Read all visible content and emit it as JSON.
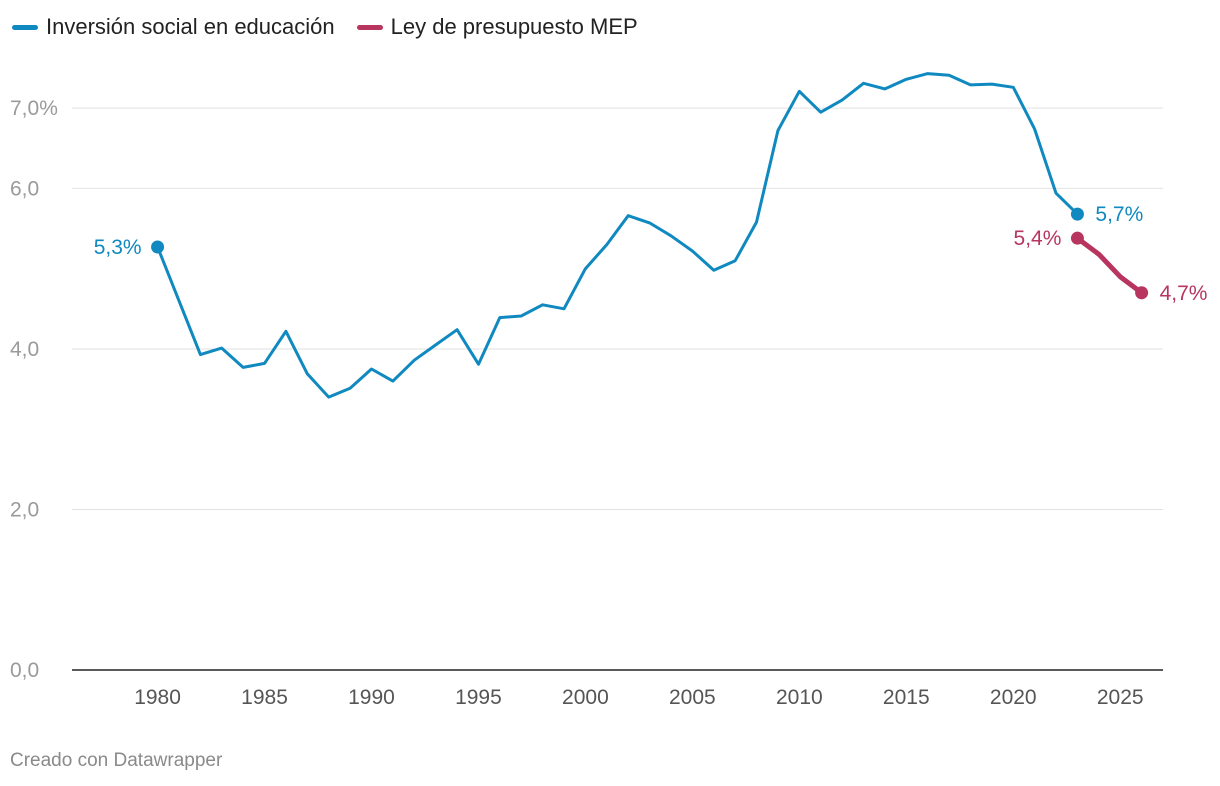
{
  "chart_data": {
    "type": "line",
    "x_range": [
      1976,
      2027
    ],
    "ylim": [
      0,
      7.6
    ],
    "yticks": [
      {
        "value": 0,
        "label": "0,0"
      },
      {
        "value": 2,
        "label": "2,0"
      },
      {
        "value": 4,
        "label": "4,0"
      },
      {
        "value": 6,
        "label": "6,0"
      },
      {
        "value": 7,
        "label": "7,0%"
      }
    ],
    "xticks": [
      {
        "value": 1980,
        "label": "1980"
      },
      {
        "value": 1985,
        "label": "1985"
      },
      {
        "value": 1990,
        "label": "1990"
      },
      {
        "value": 1995,
        "label": "1995"
      },
      {
        "value": 2000,
        "label": "2000"
      },
      {
        "value": 2005,
        "label": "2005"
      },
      {
        "value": 2010,
        "label": "2010"
      },
      {
        "value": 2015,
        "label": "2015"
      },
      {
        "value": 2020,
        "label": "2020"
      },
      {
        "value": 2025,
        "label": "2025"
      }
    ],
    "grid": true,
    "legend_position": "top-left",
    "series": [
      {
        "name": "Inversión social en educación",
        "color": "#1089c0",
        "x": [
          1980,
          1981,
          1982,
          1983,
          1984,
          1985,
          1986,
          1987,
          1988,
          1989,
          1990,
          1991,
          1992,
          1993,
          1994,
          1995,
          1996,
          1997,
          1998,
          1999,
          2000,
          2001,
          2002,
          2003,
          2004,
          2005,
          2006,
          2007,
          2008,
          2009,
          2010,
          2011,
          2012,
          2013,
          2014,
          2015,
          2016,
          2017,
          2018,
          2019,
          2020,
          2021,
          2022,
          2023
        ],
        "y": [
          5.27,
          4.6,
          3.93,
          4.01,
          3.77,
          3.82,
          4.22,
          3.69,
          3.4,
          3.51,
          3.75,
          3.6,
          3.86,
          4.05,
          4.24,
          3.81,
          4.39,
          4.41,
          4.55,
          4.5,
          5.0,
          5.3,
          5.66,
          5.57,
          5.41,
          5.22,
          4.98,
          5.1,
          5.58,
          6.72,
          7.21,
          6.95,
          7.1,
          7.31,
          7.24,
          7.36,
          7.43,
          7.41,
          7.29,
          7.3,
          7.26,
          6.74,
          5.94,
          5.68
        ],
        "end_labels": [
          {
            "x": 1980,
            "y": 5.27,
            "text": "5,3%",
            "side": "left"
          },
          {
            "x": 2023,
            "y": 5.68,
            "text": "5,7%",
            "side": "right"
          }
        ]
      },
      {
        "name": "Ley de presupuesto MEP",
        "color": "#b7355f",
        "x": [
          2023,
          2024,
          2025,
          2026
        ],
        "y": [
          5.38,
          5.18,
          4.9,
          4.7
        ],
        "end_labels": [
          {
            "x": 2023,
            "y": 5.38,
            "text": "5,4%",
            "side": "left"
          },
          {
            "x": 2026,
            "y": 4.7,
            "text": "4,7%",
            "side": "right"
          }
        ]
      }
    ]
  },
  "footer": {
    "credit": "Creado con Datawrapper"
  }
}
